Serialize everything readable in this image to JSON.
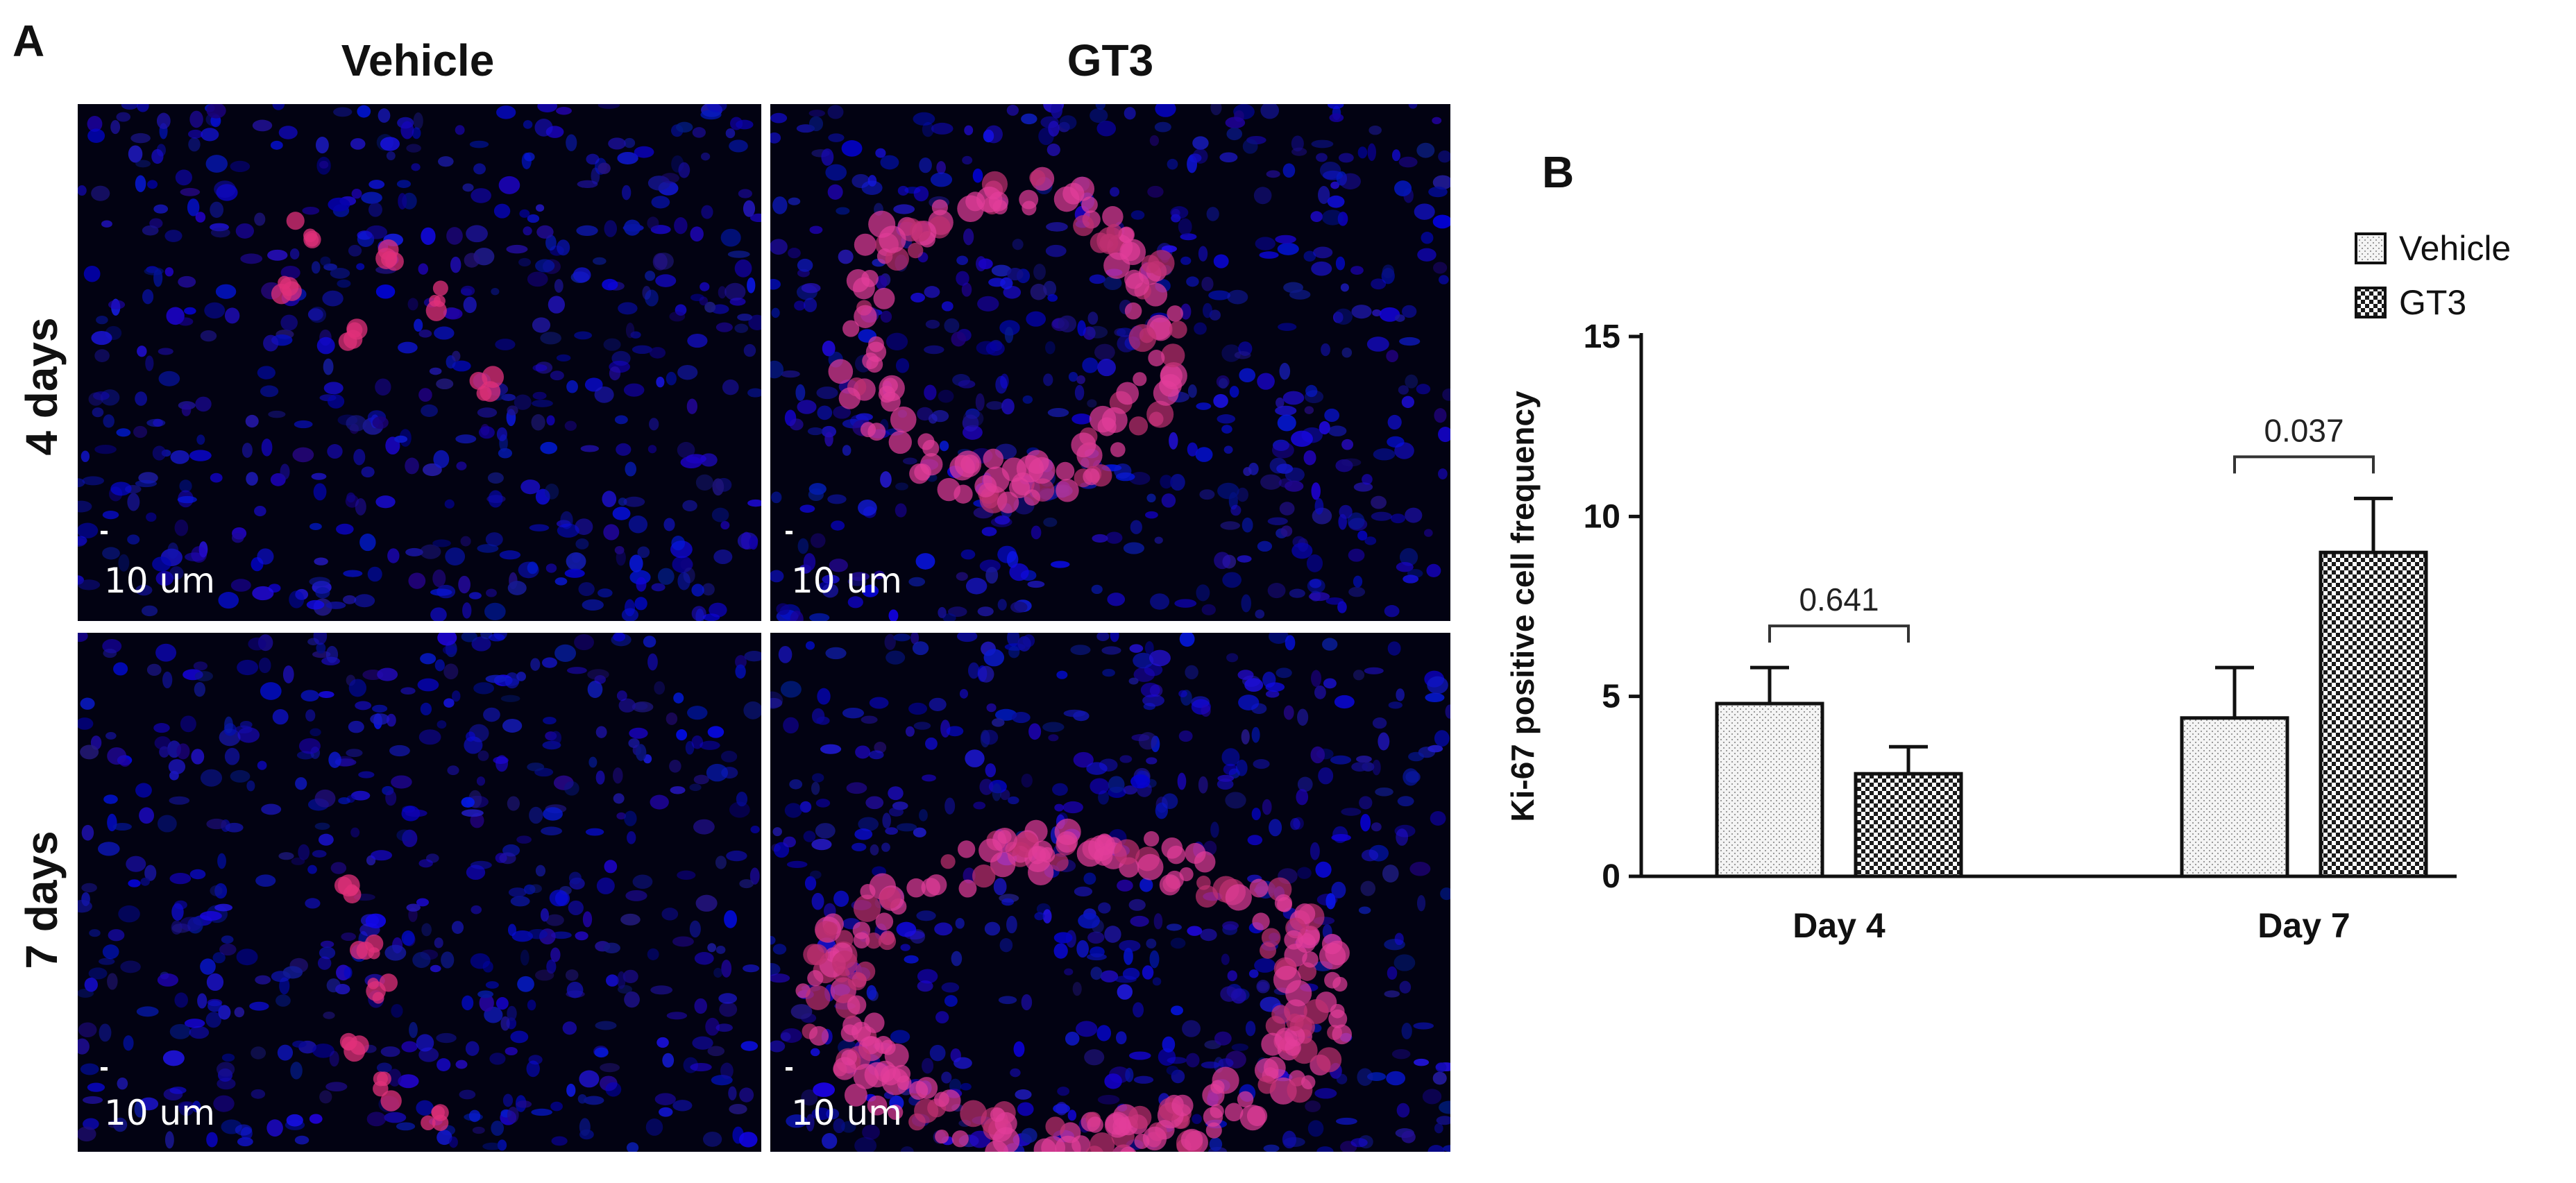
{
  "panel_a": {
    "letter": "A",
    "columns": [
      "Vehicle",
      "GT3"
    ],
    "rows": [
      "4 days",
      "7 days"
    ],
    "scale_label": "10 um"
  },
  "chart_data": {
    "type": "bar",
    "panel_letter": "B",
    "categories": [
      "Day 4",
      "Day 7"
    ],
    "series": [
      {
        "name": "Vehicle",
        "values": [
          4.8,
          4.4
        ],
        "errors": [
          1.0,
          1.4
        ],
        "pattern": "dots"
      },
      {
        "name": "GT3",
        "values": [
          2.85,
          9.0
        ],
        "errors": [
          0.75,
          1.5
        ],
        "pattern": "checker"
      }
    ],
    "annotations": [
      {
        "category": "Day 4",
        "text": "0.641"
      },
      {
        "category": "Day 7",
        "text": "0.037"
      }
    ],
    "xlabel": "",
    "ylabel": "Ki-67 positive cell frequency",
    "ylim": [
      0,
      15
    ],
    "yticks": [
      0,
      5,
      10,
      15
    ],
    "legend_position": "top-right",
    "grid": false
  }
}
